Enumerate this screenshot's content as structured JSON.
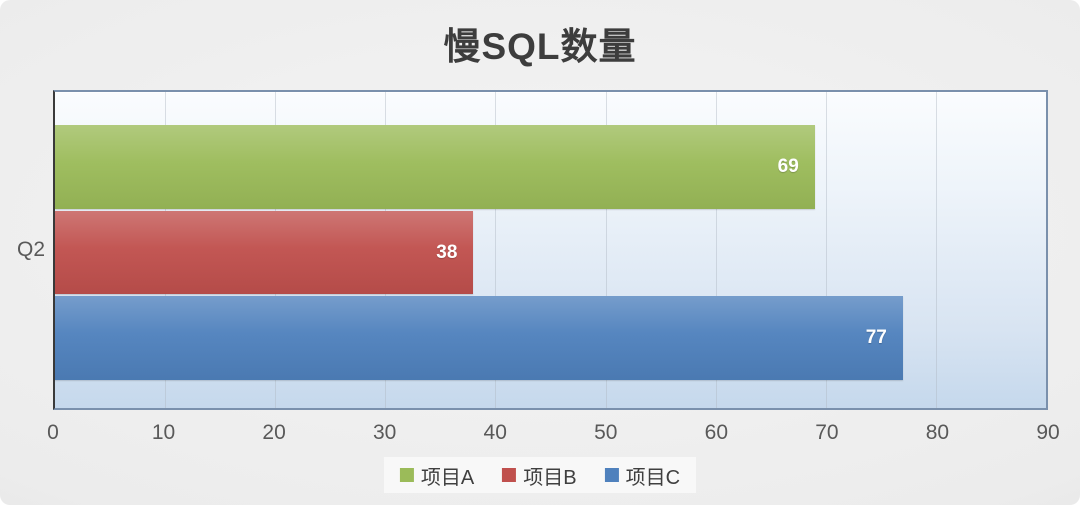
{
  "title": "慢SQL数量",
  "chart_data": {
    "type": "bar",
    "orientation": "horizontal",
    "title": "慢SQL数量",
    "categories": [
      "Q2"
    ],
    "series": [
      {
        "name": "项目A",
        "values": [
          69
        ],
        "color": "#9bbb59"
      },
      {
        "name": "项目B",
        "values": [
          38
        ],
        "color": "#c0504d"
      },
      {
        "name": "项目C",
        "values": [
          77
        ],
        "color": "#4f81bd"
      }
    ],
    "xlim": [
      0,
      90
    ],
    "xticks": [
      0,
      10,
      20,
      30,
      40,
      50,
      60,
      70,
      80,
      90
    ],
    "grid": "vertical",
    "legend_position": "bottom",
    "value_labels": true,
    "colors": {
      "plot_border": "#7a90ac",
      "axis_line": "#3a3a3a",
      "tick_text": "#595959",
      "title_text": "#3d3d3d",
      "value_label_text": "#ffffff"
    }
  }
}
